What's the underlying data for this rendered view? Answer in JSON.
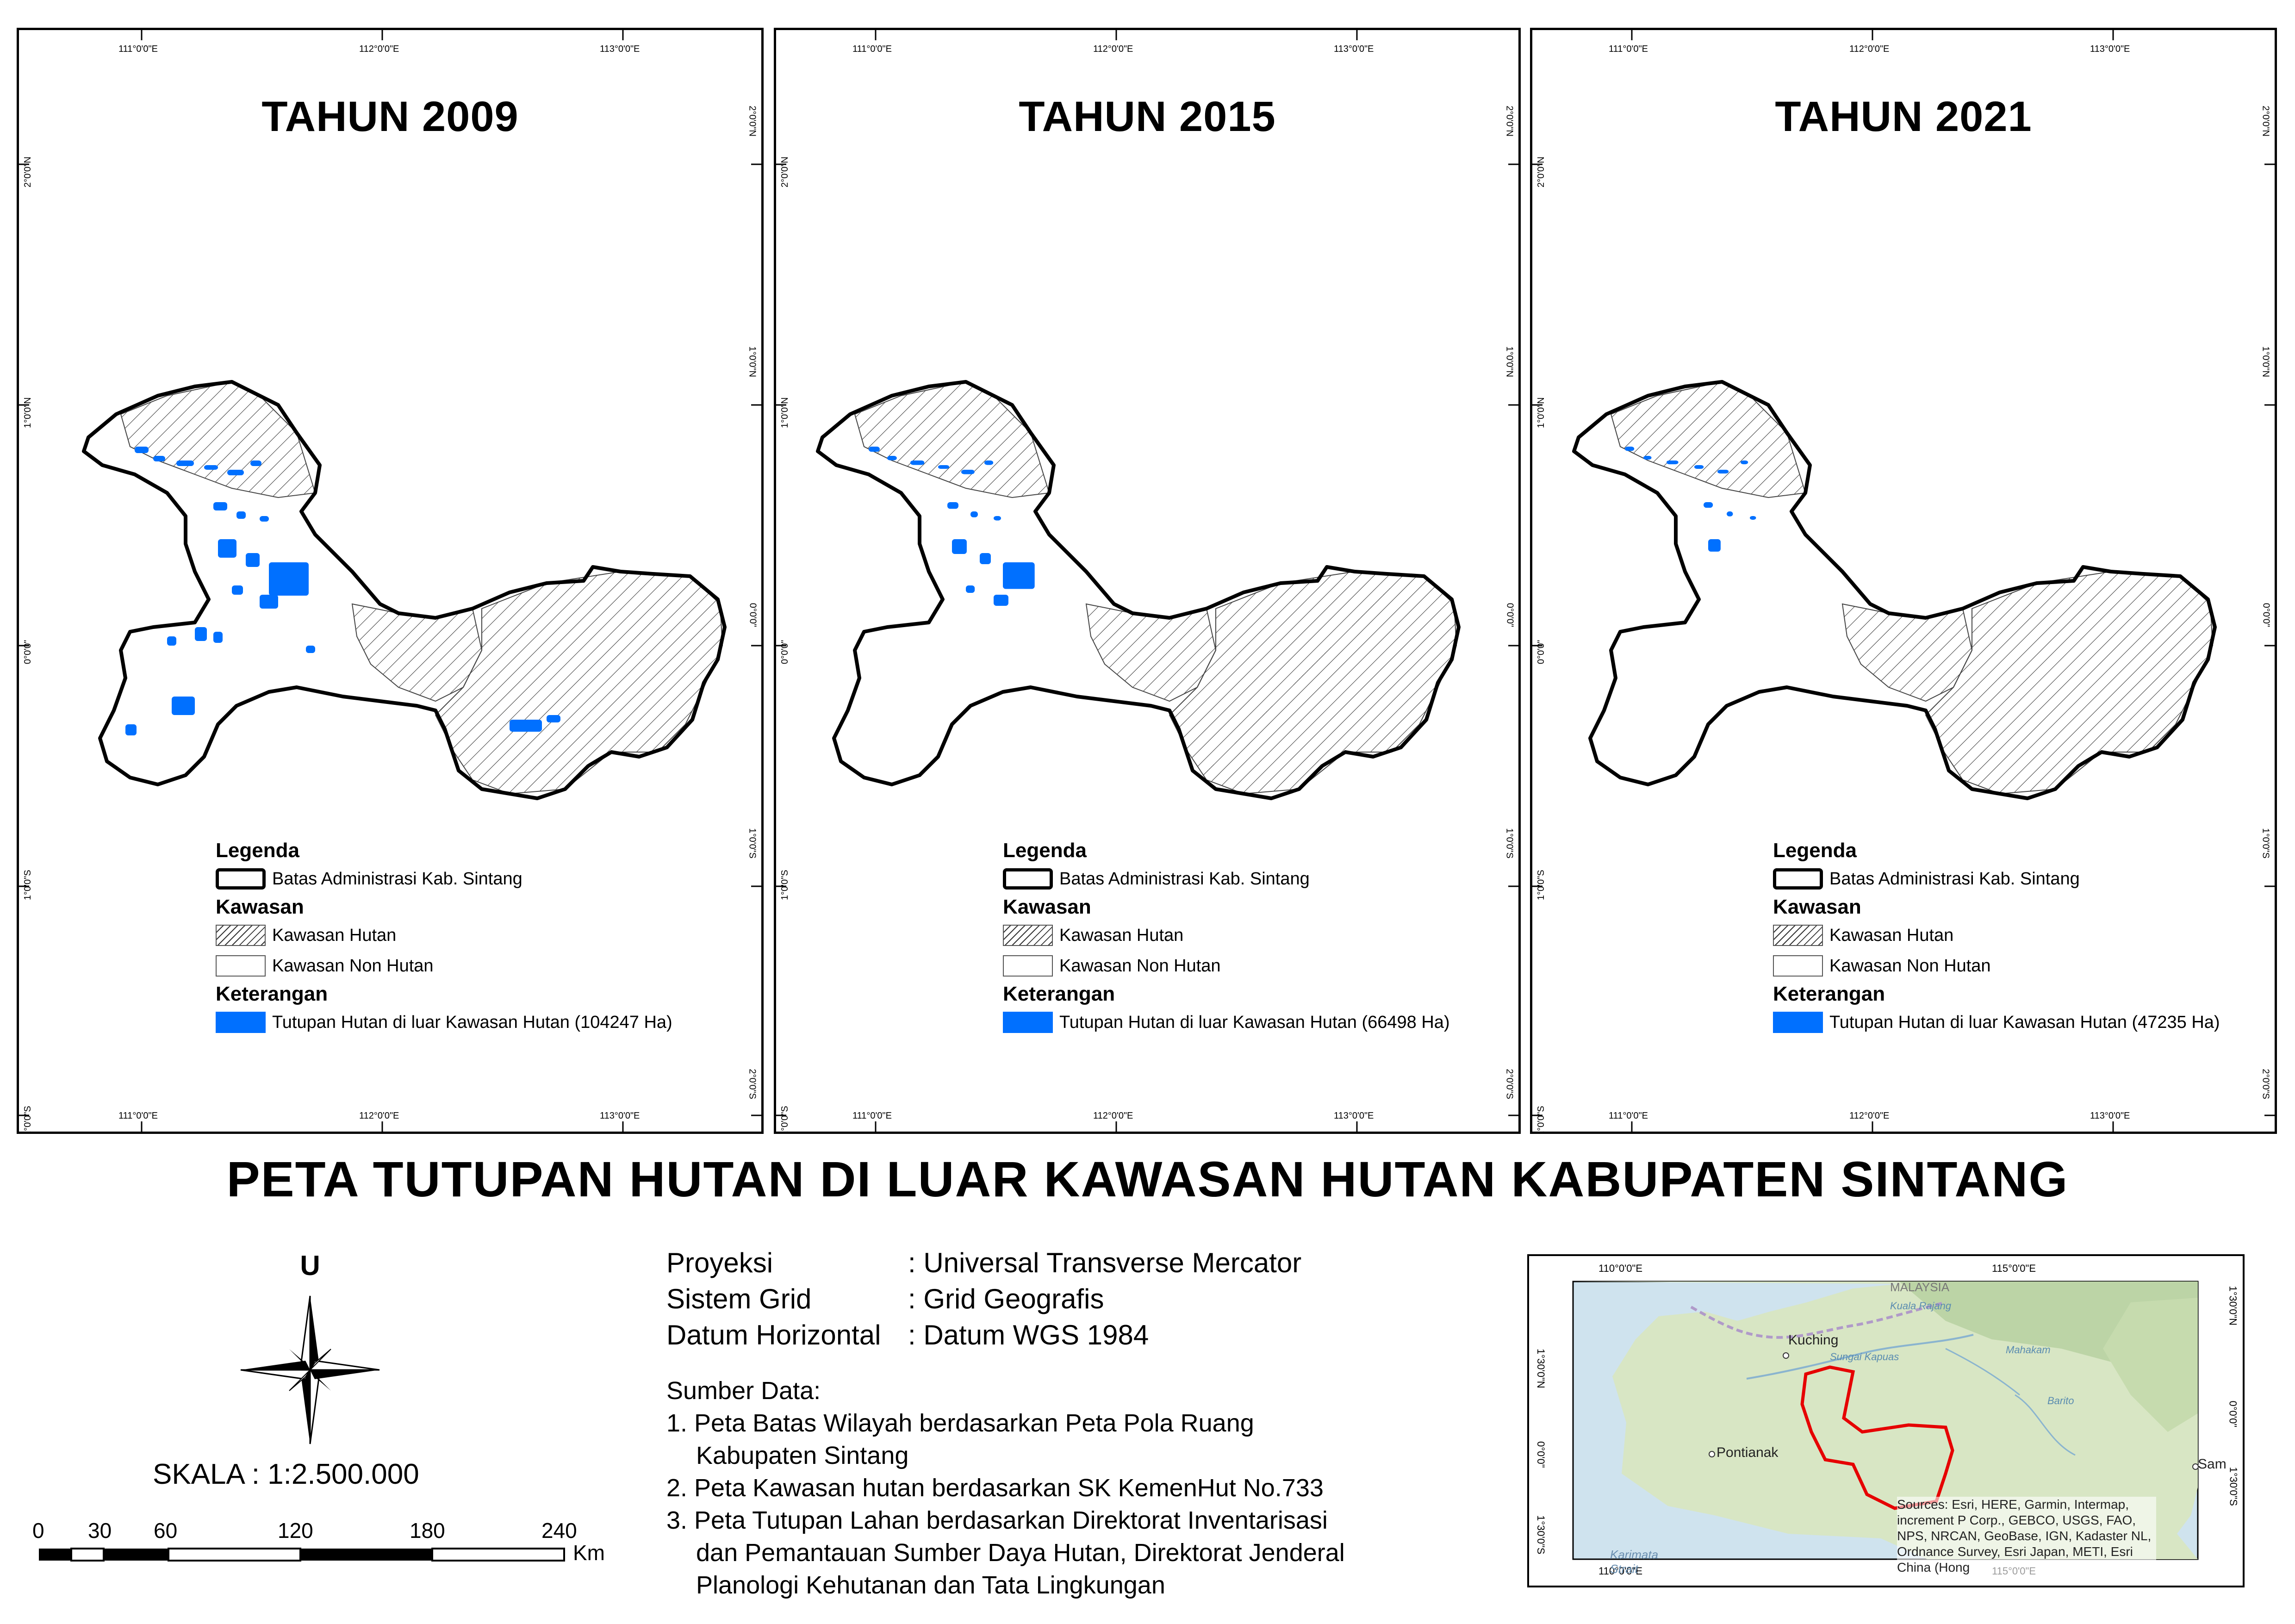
{
  "panels": [
    {
      "title": "TAHUN 2009",
      "forest_ha": 104247,
      "legend_forest": "Tutupan Hutan di luar Kawasan Hutan (104247 Ha)"
    },
    {
      "title": "TAHUN 2015",
      "forest_ha": 66498,
      "legend_forest": "Tutupan Hutan di luar Kawasan Hutan (66498 Ha)"
    },
    {
      "title": "TAHUN 2021",
      "forest_ha": 47235,
      "legend_forest": "Tutupan Hutan di luar Kawasan Hutan (47235 Ha)"
    }
  ],
  "grid_labels": {
    "lon": [
      "111°0'0\"E",
      "112°0'0\"E",
      "113°0'0\"E"
    ],
    "lat": [
      "2°0'0\"N",
      "1°0'0\"N",
      "0°0'0\"",
      "1°0'0\"S",
      "2°0'0\"S"
    ]
  },
  "legend": {
    "heading": "Legenda",
    "boundary": "Batas Administrasi Kab. Sintang",
    "kawasan_heading": "Kawasan",
    "kawasan_hutan": "Kawasan Hutan",
    "kawasan_non_hutan": "Kawasan Non Hutan",
    "keterangan_heading": "Keterangan"
  },
  "main_title": "PETA TUTUPAN HUTAN DI LUAR KAWASAN HUTAN KABUPATEN SINTANG",
  "north_label": "U",
  "scale": {
    "text": "SKALA :  1:2.500.000",
    "ticks": [
      "0",
      "30",
      "60",
      "120",
      "180",
      "240"
    ],
    "unit": "Km"
  },
  "info": [
    {
      "label": "Proyeksi",
      "value": ": Universal Transverse Mercator"
    },
    {
      "label": "Sistem Grid",
      "value": ": Grid Geografis"
    },
    {
      "label": "Datum Horizontal",
      "value": ": Datum WGS 1984"
    }
  ],
  "sources": {
    "heading": "Sumber Data:",
    "lines": [
      "1. Peta Batas Wilayah berdasarkan Peta Pola Ruang",
      "    Kabupaten Sintang",
      "2. Peta Kawasan hutan berdasarkan SK KemenHut No.733",
      "3. Peta Tutupan Lahan  berdasarkan Direktorat Inventarisasi",
      "    dan Pemantauan Sumber Daya Hutan, Direktorat Jenderal",
      "    Planologi Kehutanan dan Tata Lingkungan"
    ]
  },
  "inset": {
    "lon_labels": [
      "110°0'0\"E",
      "115°0'0\"E"
    ],
    "lat_labels": [
      "1°30'0\"N",
      "0°0'0\"",
      "1°30'0\"S"
    ],
    "places": [
      "Kuching",
      "Pontianak",
      "Sam",
      "Karimata Strait",
      "MALAYSIA",
      "Sungai Kapuas",
      "Mahakam",
      "Barito",
      "Kuala Rajang"
    ],
    "credit": "Sources: Esri, HERE, Garmin, Intermap, increment P Corp., GEBCO, USGS, FAO, NPS, NRCAN, GeoBase, IGN, Kadaster NL, Ordnance Survey, Esri Japan, METI, Esri China (Hong"
  },
  "colors": {
    "forest_blue": "#0070ff",
    "boundary": "#000000",
    "inset_boundary": "#e60000",
    "inset_land": "#d8e6c4",
    "inset_sea": "#cfe3ee"
  }
}
